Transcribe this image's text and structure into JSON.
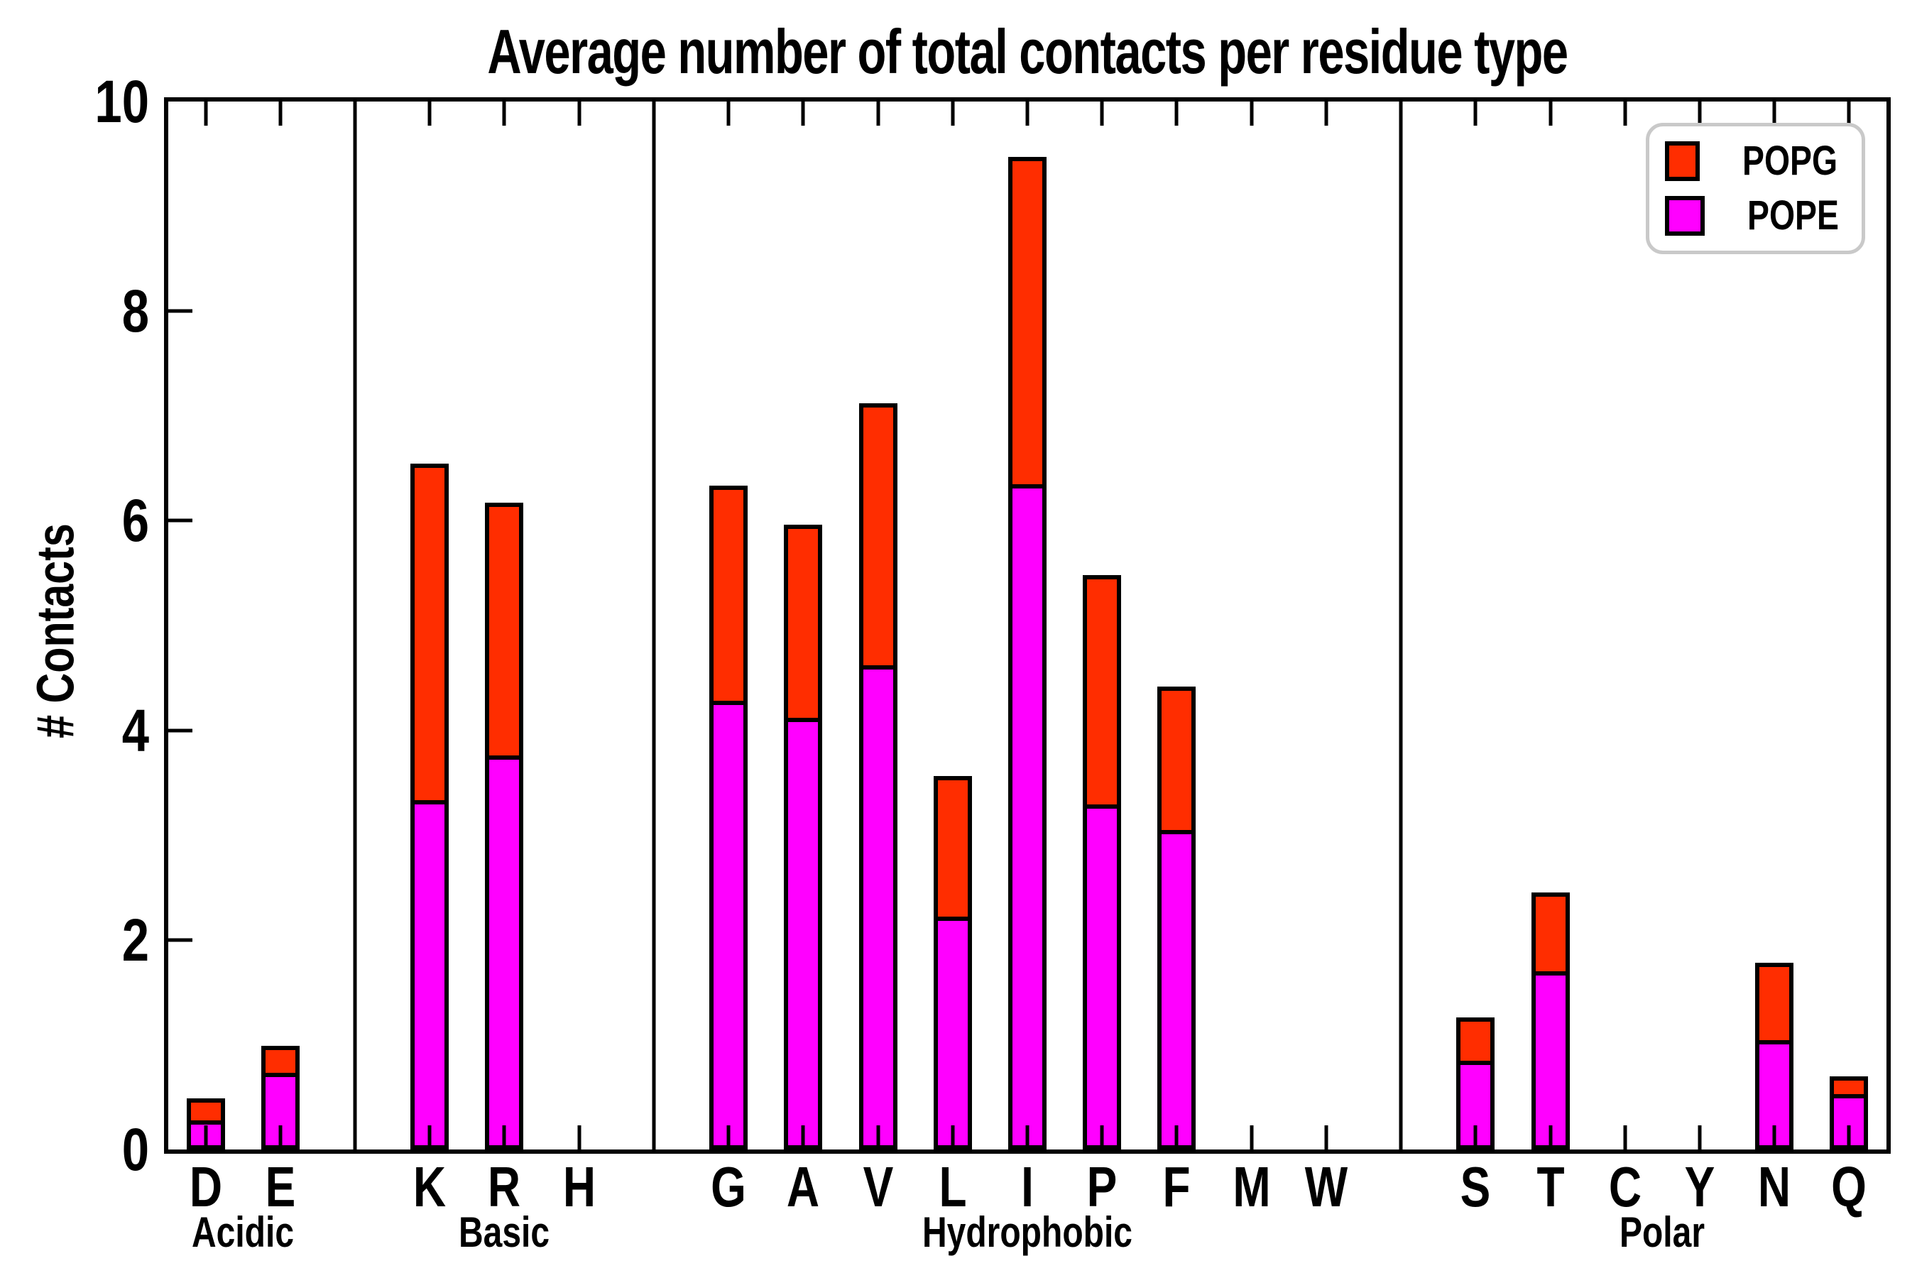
{
  "title": "Average number of total contacts per residue type",
  "ylabel": "# Contacts",
  "legend": {
    "entries": [
      {
        "label": "POPG",
        "color": "#ff2d00"
      },
      {
        "label": "POPE",
        "color": "#ff00ff"
      }
    ]
  },
  "chart_data": {
    "type": "bar",
    "stacked": true,
    "title": "Average number of total contacts per residue type",
    "ylabel": "# Contacts",
    "ylim": [
      0,
      10
    ],
    "yticks": [
      0,
      2,
      4,
      6,
      8,
      10
    ],
    "legend_position": "upper right",
    "grid": false,
    "categories": [
      "D",
      "E",
      "K",
      "R",
      "H",
      "G",
      "A",
      "V",
      "L",
      "I",
      "P",
      "F",
      "M",
      "W",
      "S",
      "T",
      "C",
      "Y",
      "N",
      "Q"
    ],
    "groups": [
      {
        "label": "Acidic",
        "categories": [
          "D",
          "E"
        ]
      },
      {
        "label": "Basic",
        "categories": [
          "K",
          "R",
          "H"
        ]
      },
      {
        "label": "Hydrophobic",
        "categories": [
          "G",
          "A",
          "V",
          "L",
          "I",
          "P",
          "F",
          "M",
          "W"
        ]
      },
      {
        "label": "Polar",
        "categories": [
          "S",
          "T",
          "C",
          "Y",
          "N",
          "Q"
        ]
      }
    ],
    "series": [
      {
        "name": "POPE",
        "color": "#ff00ff",
        "values": [
          0.28,
          0.73,
          3.33,
          3.76,
          0,
          4.28,
          4.12,
          4.62,
          2.22,
          6.35,
          3.29,
          3.05,
          0,
          0,
          0.85,
          1.7,
          0,
          0,
          1.04,
          0.53
        ]
      },
      {
        "name": "POPG",
        "color": "#ff2d00",
        "values": [
          0.21,
          0.26,
          3.21,
          2.41,
          0,
          2.05,
          1.84,
          2.5,
          1.34,
          3.12,
          2.19,
          1.37,
          0,
          0,
          0.41,
          0.75,
          0,
          0,
          0.74,
          0.17
        ]
      }
    ]
  }
}
